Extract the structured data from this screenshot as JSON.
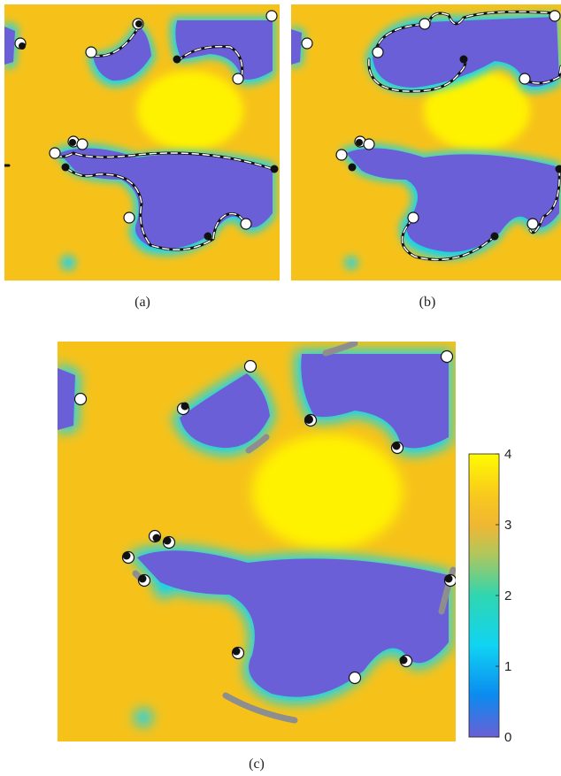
{
  "panels": [
    {
      "id": "a",
      "caption": "(a)"
    },
    {
      "id": "b",
      "caption": "(b)"
    },
    {
      "id": "c",
      "caption": "(c)"
    }
  ],
  "colors": {
    "field_high": "#f6c21a",
    "field_peak": "#fff200",
    "field_low": "#6a5fd6",
    "edge_cyan": "#11d4f2",
    "edge_blue": "#0a8cf0",
    "contour": "#111111",
    "dash": "#ffffff",
    "gray_mark": "#8e8e8e"
  },
  "chart_data": {
    "type": "heatmap",
    "colorbar": {
      "ticks": [
        0,
        1,
        2,
        3,
        4
      ],
      "ticks_text": [
        "0",
        "1",
        "2",
        "3",
        "4"
      ],
      "range": [
        0,
        4
      ],
      "stops": [
        {
          "v": 0,
          "c": "#6a5fd6"
        },
        {
          "v": 0.6,
          "c": "#0a8cf0"
        },
        {
          "v": 1.3,
          "c": "#11d4f2"
        },
        {
          "v": 2.0,
          "c": "#2fd6b0"
        },
        {
          "v": 2.6,
          "c": "#b4c65a"
        },
        {
          "v": 3.0,
          "c": "#f0b732"
        },
        {
          "v": 3.4,
          "c": "#f8c81e"
        },
        {
          "v": 4.0,
          "c": "#fffb00"
        }
      ]
    }
  }
}
